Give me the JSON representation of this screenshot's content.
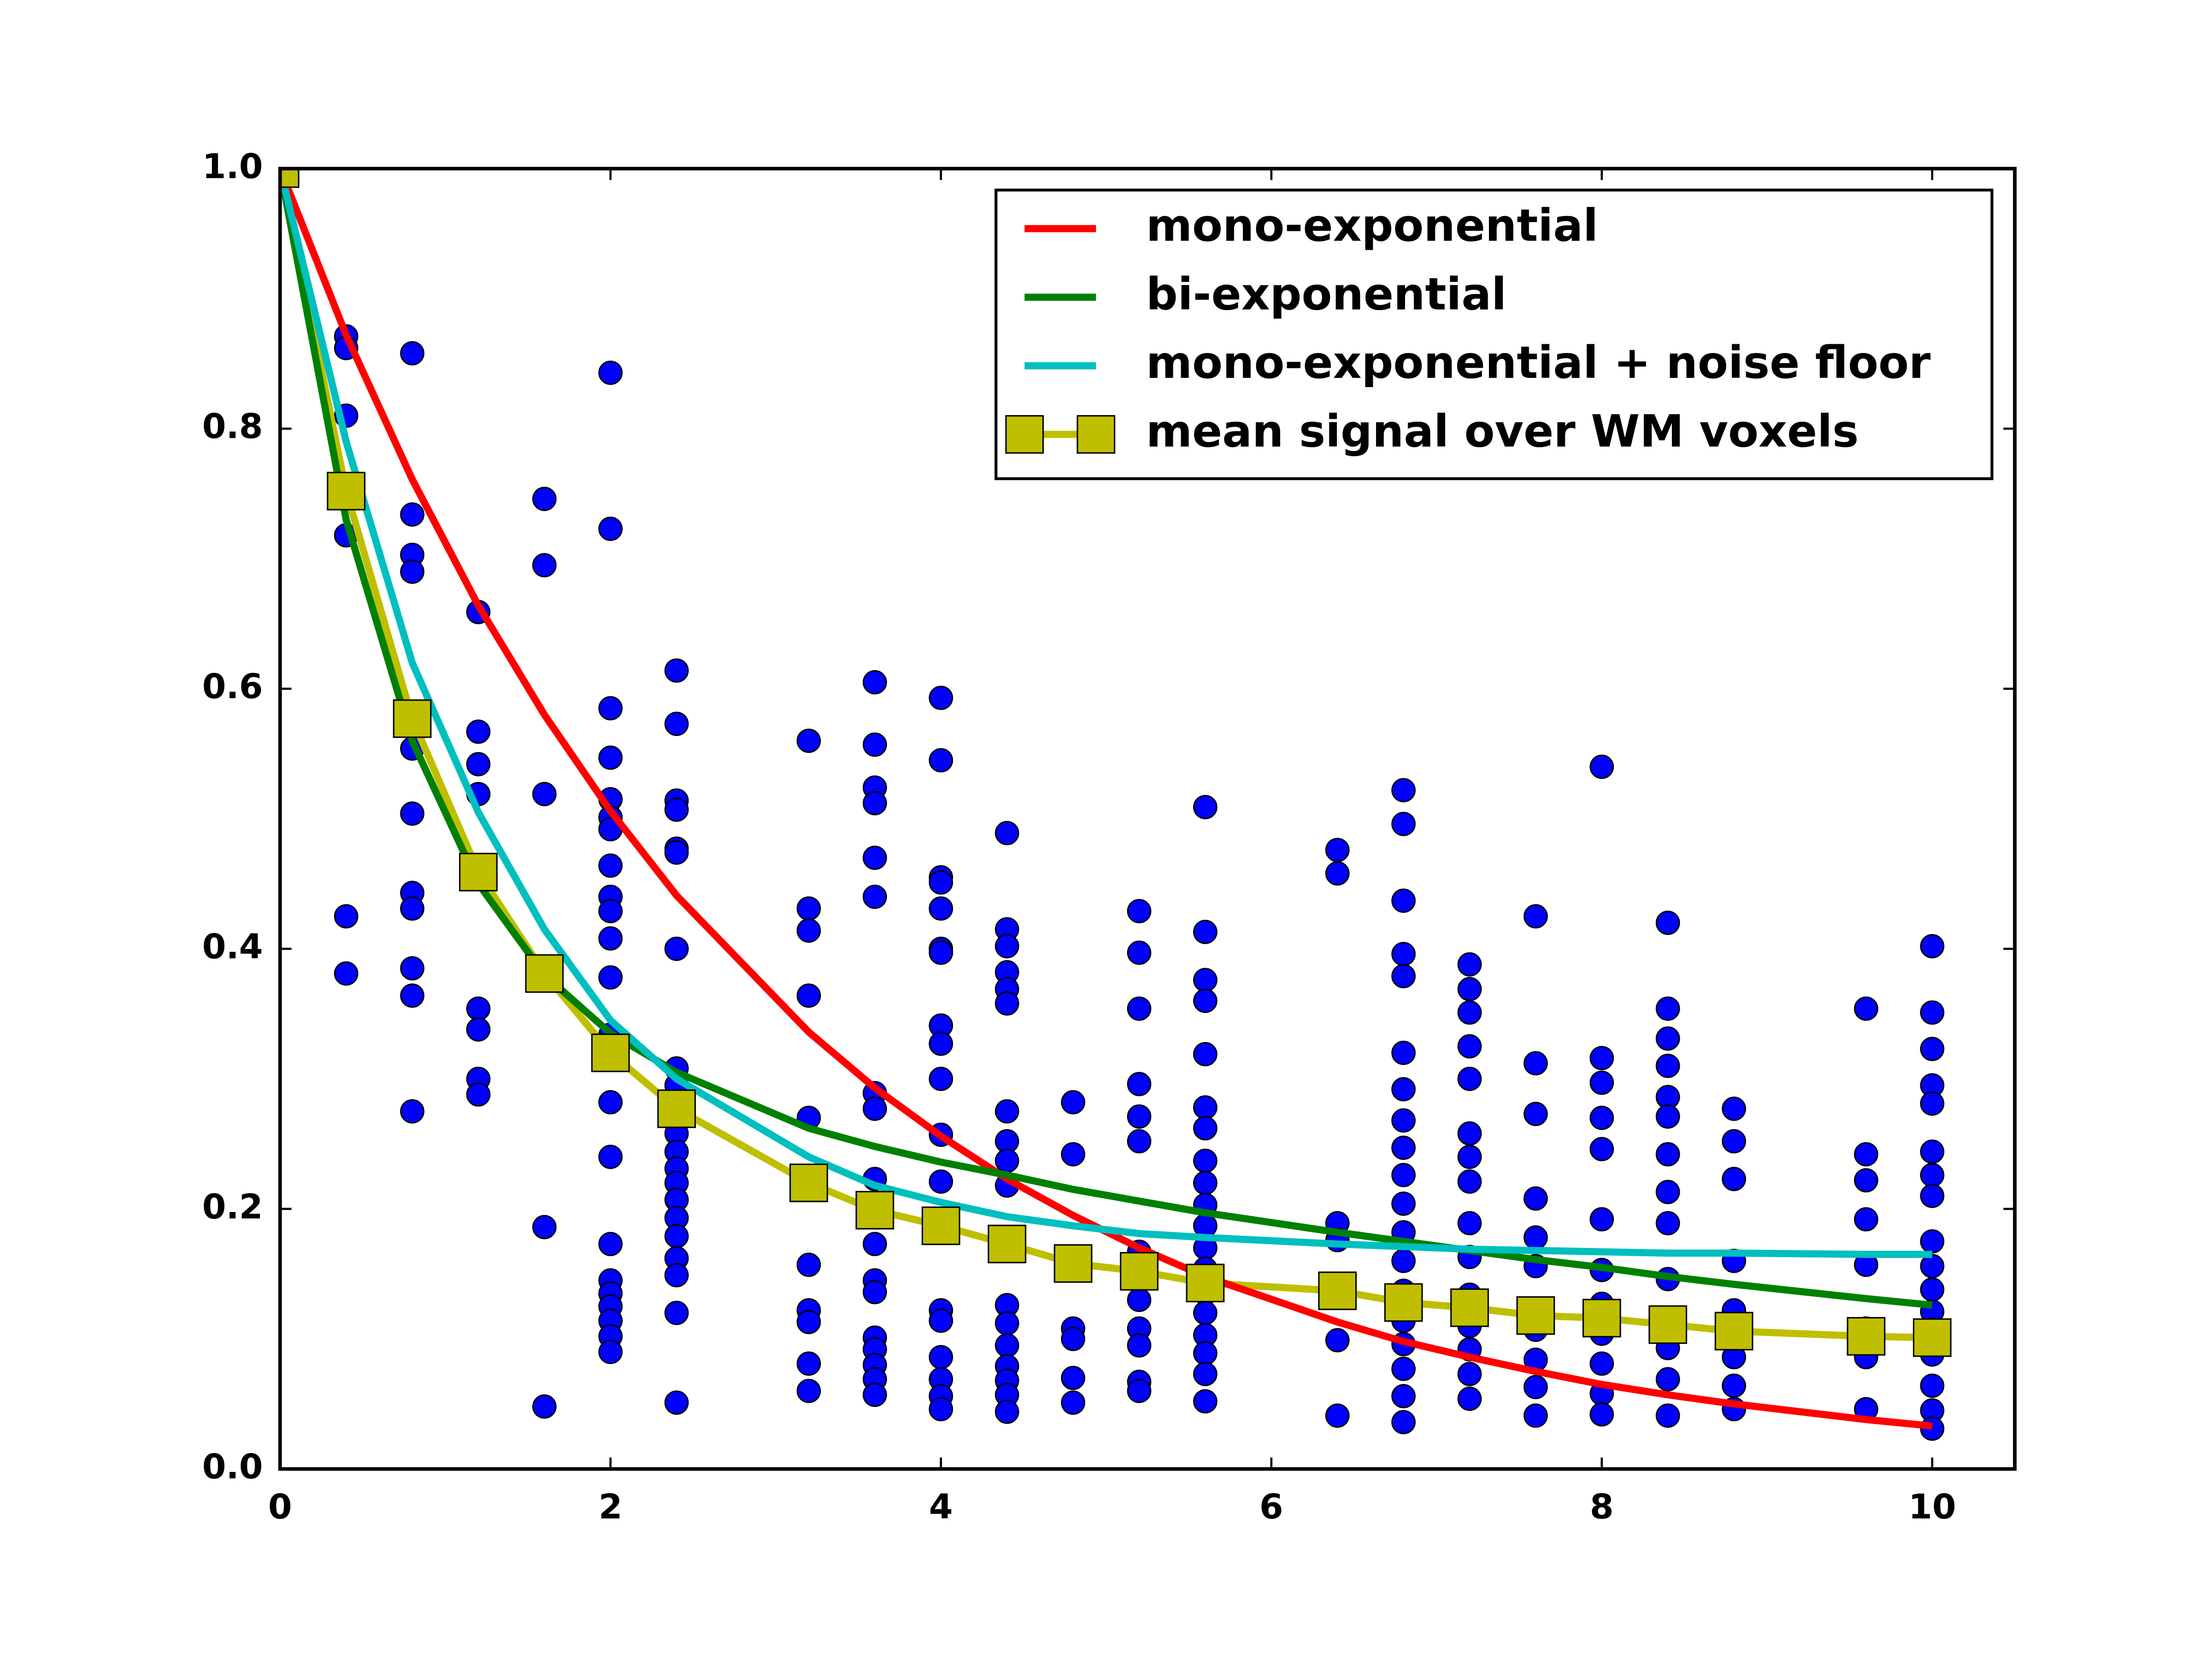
{
  "chart_data": {
    "type": "scatter",
    "xlim": [
      0,
      10.5
    ],
    "ylim": [
      0,
      1
    ],
    "xticks": [
      0,
      2,
      4,
      6,
      8,
      10
    ],
    "yticks": [
      {
        "value": 0,
        "label": "0.0"
      },
      {
        "value": 0.2,
        "label": "0.2"
      },
      {
        "value": 0.4,
        "label": "0.4"
      },
      {
        "value": 0.6,
        "label": "0.6"
      },
      {
        "value": 0.8,
        "label": "0.8"
      },
      {
        "value": 1,
        "label": "1.0"
      }
    ],
    "legend": "upper right",
    "points": {
      "color": "#0000ff",
      "columns": [
        {
          "x": 0,
          "values": [
            1.0
          ]
        },
        {
          "x": 0.4,
          "values": [
            0.871,
            0.862,
            0.81,
            0.718,
            0.425,
            0.381
          ]
        },
        {
          "x": 0.8,
          "values": [
            0.858,
            0.734,
            0.703,
            0.69,
            0.554,
            0.504,
            0.443,
            0.431,
            0.385,
            0.364,
            0.275
          ]
        },
        {
          "x": 1.2,
          "values": [
            0.659,
            0.567,
            0.542,
            0.519,
            0.354,
            0.338,
            0.3,
            0.288
          ]
        },
        {
          "x": 1.6,
          "values": [
            0.746,
            0.695,
            0.519,
            0.186,
            0.048
          ]
        },
        {
          "x": 2,
          "values": [
            0.843,
            0.723,
            0.585,
            0.547,
            0.515,
            0.501,
            0.492,
            0.464,
            0.44,
            0.429,
            0.408,
            0.378,
            0.334,
            0.282,
            0.24,
            0.173,
            0.145,
            0.135,
            0.125,
            0.114,
            0.102,
            0.09
          ]
        },
        {
          "x": 2.4,
          "values": [
            0.614,
            0.573,
            0.514,
            0.507,
            0.477,
            0.474,
            0.4,
            0.308,
            0.295,
            0.258,
            0.244,
            0.231,
            0.22,
            0.207,
            0.193,
            0.179,
            0.162,
            0.149,
            0.12,
            0.051
          ]
        },
        {
          "x": 3.2,
          "values": [
            0.56,
            0.431,
            0.414,
            0.364,
            0.27,
            0.157,
            0.122,
            0.113,
            0.081,
            0.06
          ]
        },
        {
          "x": 3.6,
          "values": [
            0.605,
            0.557,
            0.524,
            0.512,
            0.47,
            0.44,
            0.289,
            0.277,
            0.223,
            0.201,
            0.173,
            0.145,
            0.136,
            0.101,
            0.092,
            0.08,
            0.069,
            0.057
          ]
        },
        {
          "x": 4,
          "values": [
            0.593,
            0.545,
            0.455,
            0.451,
            0.431,
            0.4,
            0.397,
            0.341,
            0.327,
            0.3,
            0.257,
            0.221,
            0.122,
            0.114,
            0.086,
            0.069,
            0.056,
            0.046
          ]
        },
        {
          "x": 4.4,
          "values": [
            0.489,
            0.415,
            0.402,
            0.382,
            0.369,
            0.358,
            0.275,
            0.252,
            0.237,
            0.218,
            0.126,
            0.112,
            0.095,
            0.079,
            0.068,
            0.057,
            0.044
          ]
        },
        {
          "x": 4.8,
          "values": [
            0.282,
            0.242,
            0.108,
            0.1,
            0.07,
            0.051
          ]
        },
        {
          "x": 5.2,
          "values": [
            0.429,
            0.397,
            0.354,
            0.296,
            0.271,
            0.252,
            0.167,
            0.144,
            0.13,
            0.108,
            0.095,
            0.067,
            0.06
          ]
        },
        {
          "x": 5.6,
          "values": [
            0.509,
            0.413,
            0.376,
            0.36,
            0.319,
            0.278,
            0.262,
            0.237,
            0.22,
            0.203,
            0.187,
            0.17,
            0.154,
            0.135,
            0.12,
            0.103,
            0.089,
            0.073,
            0.052
          ]
        },
        {
          "x": 6.4,
          "values": [
            0.476,
            0.458,
            0.189,
            0.176,
            0.099,
            0.041
          ]
        },
        {
          "x": 6.8,
          "values": [
            0.522,
            0.496,
            0.437,
            0.396,
            0.379,
            0.32,
            0.292,
            0.268,
            0.247,
            0.226,
            0.204,
            0.182,
            0.16,
            0.137,
            0.114,
            0.096,
            0.077,
            0.056,
            0.036
          ]
        },
        {
          "x": 7.2,
          "values": [
            0.388,
            0.369,
            0.351,
            0.325,
            0.3,
            0.258,
            0.24,
            0.221,
            0.189,
            0.163,
            0.134,
            0.11,
            0.092,
            0.073,
            0.054
          ]
        },
        {
          "x": 7.6,
          "values": [
            0.425,
            0.312,
            0.273,
            0.208,
            0.178,
            0.156,
            0.107,
            0.084,
            0.063,
            0.041
          ]
        },
        {
          "x": 8,
          "values": [
            0.54,
            0.316,
            0.297,
            0.27,
            0.246,
            0.192,
            0.153,
            0.127,
            0.104,
            0.081,
            0.058,
            0.042
          ]
        },
        {
          "x": 8.4,
          "values": [
            0.42,
            0.354,
            0.331,
            0.31,
            0.286,
            0.271,
            0.242,
            0.213,
            0.189,
            0.146,
            0.093,
            0.069,
            0.041
          ]
        },
        {
          "x": 8.8,
          "values": [
            0.277,
            0.252,
            0.223,
            0.16,
            0.122,
            0.086,
            0.064,
            0.046
          ]
        },
        {
          "x": 9.6,
          "values": [
            0.354,
            0.242,
            0.222,
            0.192,
            0.157,
            0.108,
            0.086,
            0.046
          ]
        },
        {
          "x": 10,
          "values": [
            0.402,
            0.351,
            0.323,
            0.295,
            0.281,
            0.244,
            0.226,
            0.21,
            0.175,
            0.156,
            0.138,
            0.121,
            0.107,
            0.088,
            0.064,
            0.045,
            0.031
          ]
        }
      ]
    },
    "x": [
      0,
      0.4,
      0.8,
      1.2,
      1.6,
      2,
      2.4,
      3.2,
      3.6,
      4,
      4.4,
      4.8,
      5.2,
      5.6,
      6.4,
      6.8,
      7.2,
      7.6,
      8,
      8.4,
      8.8,
      9.6,
      10
    ],
    "series": [
      {
        "name": "mono-exponential",
        "color": "#ff0000",
        "values": [
          1,
          0.872,
          0.761,
          0.664,
          0.58,
          0.506,
          0.441,
          0.336,
          0.293,
          0.256,
          0.223,
          0.195,
          0.17,
          0.148,
          0.113,
          0.098,
          0.086,
          0.075,
          0.065,
          0.057,
          0.05,
          0.038,
          0.033
        ]
      },
      {
        "name": "bi-exponential",
        "color": "#008000",
        "values": [
          1,
          0.73,
          0.56,
          0.45,
          0.38,
          0.335,
          0.305,
          0.262,
          0.248,
          0.236,
          0.226,
          0.215,
          0.206,
          0.197,
          0.182,
          0.175,
          0.168,
          0.161,
          0.155,
          0.148,
          0.142,
          0.131,
          0.126
        ]
      },
      {
        "name": "mono-exponential + noise floor",
        "color": "#00bfbf",
        "values": [
          1,
          0.79,
          0.62,
          0.505,
          0.415,
          0.345,
          0.3,
          0.24,
          0.218,
          0.205,
          0.194,
          0.187,
          0.181,
          0.178,
          0.173,
          0.171,
          0.169,
          0.168,
          0.167,
          0.166,
          0.166,
          0.165,
          0.165
        ]
      },
      {
        "name": "mean signal over WM voxels",
        "color": "#bfbf00",
        "marker": "square",
        "values": [
          1.0,
          0.752,
          0.577,
          0.459,
          0.381,
          0.32,
          0.277,
          0.22,
          0.199,
          0.187,
          0.173,
          0.158,
          0.152,
          0.143,
          0.137,
          0.128,
          0.124,
          0.118,
          0.116,
          0.111,
          0.106,
          0.102,
          0.101
        ]
      }
    ]
  }
}
